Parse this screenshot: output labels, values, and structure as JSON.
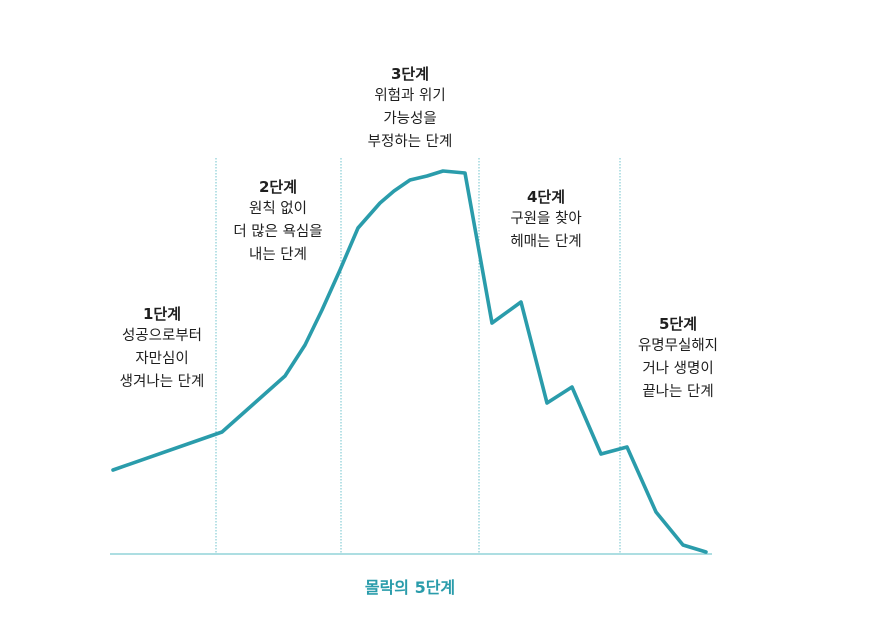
{
  "diagram": {
    "caption": "몰락의 5단계",
    "line_color": "#2a9cab",
    "divider_color": "#6fc3cc",
    "axis_color": "#7cc9d1",
    "stages": [
      {
        "title": "1단계",
        "lines": [
          "성공으로부터",
          "자만심이",
          "생겨나는 단계"
        ]
      },
      {
        "title": "2단계",
        "lines": [
          "원칙 없이",
          "더 많은 욕심을",
          "내는 단계"
        ]
      },
      {
        "title": "3단계",
        "lines": [
          "위험과 위기",
          "가능성을",
          "부정하는 단계"
        ]
      },
      {
        "title": "4단계",
        "lines": [
          "구원을 찾아",
          "헤매는 단계"
        ]
      },
      {
        "title": "5단계",
        "lines": [
          "유명무실해지",
          "거나 생명이",
          "끝나는 단계"
        ]
      }
    ]
  }
}
